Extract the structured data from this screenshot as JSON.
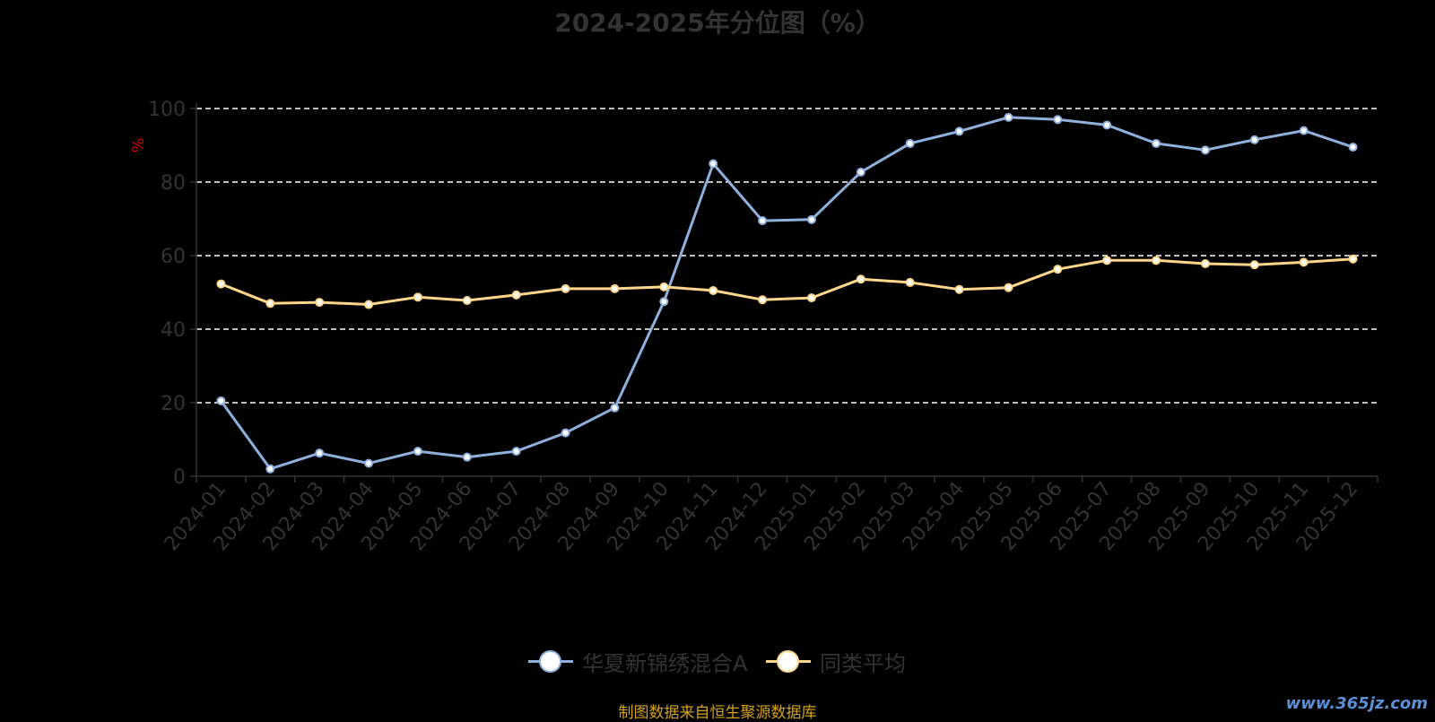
{
  "chart_data": {
    "type": "line",
    "title": "2024-2025年分位图（%）",
    "ylabel": "%",
    "xlabel": "",
    "ylim": [
      0,
      100
    ],
    "yticks": [
      0,
      20,
      40,
      60,
      80,
      100
    ],
    "grid": true,
    "legend_position": "bottom-center",
    "categories": [
      "2024-01",
      "2024-02",
      "2024-03",
      "2024-04",
      "2024-05",
      "2024-06",
      "2024-07",
      "2024-08",
      "2024-09",
      "2024-10",
      "2024-11",
      "2024-12",
      "2025-01",
      "2025-02",
      "2025-03",
      "2025-04",
      "2025-05",
      "2025-06",
      "2025-07",
      "2025-08",
      "2025-09",
      "2025-10",
      "2025-11",
      "2025-12"
    ],
    "series": [
      {
        "name": "华夏新锦绣混合A",
        "color": "#8fb0dc",
        "values": [
          20.5,
          2.0,
          6.3,
          3.5,
          6.8,
          5.2,
          6.8,
          11.8,
          18.6,
          47.5,
          85.0,
          69.5,
          69.8,
          82.7,
          90.5,
          93.8,
          97.6,
          97.0,
          95.5,
          90.5,
          88.7,
          91.5,
          94.0,
          89.5
        ]
      },
      {
        "name": "同类平均",
        "color": "#ffd68a",
        "values": [
          52.3,
          47.0,
          47.3,
          46.7,
          48.7,
          47.8,
          49.3,
          51.0,
          51.0,
          51.5,
          50.5,
          48.0,
          48.5,
          53.6,
          52.7,
          50.8,
          51.3,
          56.3,
          58.7,
          58.7,
          57.8,
          57.5,
          58.2,
          59.1
        ]
      }
    ]
  },
  "footer": {
    "source": "制图数据来自恒生聚源数据库",
    "watermark": "www.365jz.com"
  },
  "colors": {
    "background": "#000000",
    "axis_text": "#333333",
    "grid": "#ffffff",
    "ylabel": "#cc0000",
    "source_text": "#d4a21a"
  }
}
